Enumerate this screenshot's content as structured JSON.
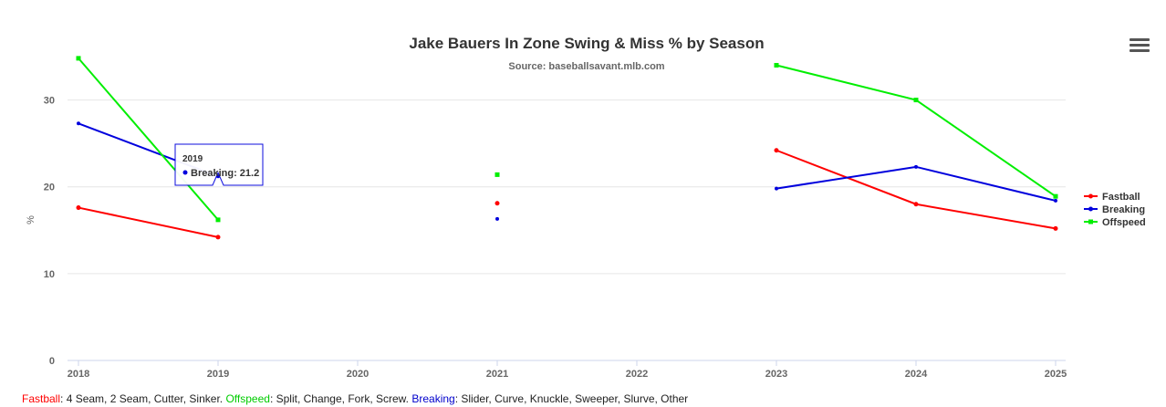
{
  "menu_icon": "hamburger-menu-icon",
  "chart_data": {
    "type": "line",
    "title": "Jake Bauers In Zone Swing & Miss % by Season",
    "subtitle": "Source: baseballsavant.mlb.com",
    "ylabel": "%",
    "xlabel": "",
    "categories": [
      "2018",
      "2019",
      "2020",
      "2021",
      "2022",
      "2023",
      "2024",
      "2025"
    ],
    "ylim": [
      0,
      35
    ],
    "yticks": [
      0,
      10,
      20,
      30
    ],
    "grid": true,
    "legend_position": "right",
    "series": [
      {
        "name": "Fastball",
        "color": "#ff0000",
        "values": [
          17.6,
          14.2,
          null,
          18.1,
          null,
          24.2,
          18.0,
          15.2
        ]
      },
      {
        "name": "Breaking",
        "color": "#0000dd",
        "values": [
          27.3,
          21.2,
          null,
          16.3,
          null,
          19.8,
          22.3,
          18.4
        ]
      },
      {
        "name": "Offspeed",
        "color": "#00ee00",
        "values": [
          34.8,
          16.2,
          null,
          21.4,
          null,
          34.0,
          30.0,
          18.9
        ]
      }
    ],
    "tooltip": {
      "category": "2019",
      "series": "Breaking",
      "label": "Breaking: 21.2"
    }
  },
  "footer": [
    {
      "text": "Fastball",
      "color": "#ff0000"
    },
    {
      "text": ": 4 Seam, 2 Seam, Cutter, Sinker. ",
      "color": "#222222"
    },
    {
      "text": "Offspeed",
      "color": "#00cc00"
    },
    {
      "text": ": Split, Change, Fork, Screw. ",
      "color": "#222222"
    },
    {
      "text": "Breaking",
      "color": "#0000cc"
    },
    {
      "text": ": Slider, Curve, Knuckle, Sweeper, Slurve, Other",
      "color": "#222222"
    }
  ]
}
